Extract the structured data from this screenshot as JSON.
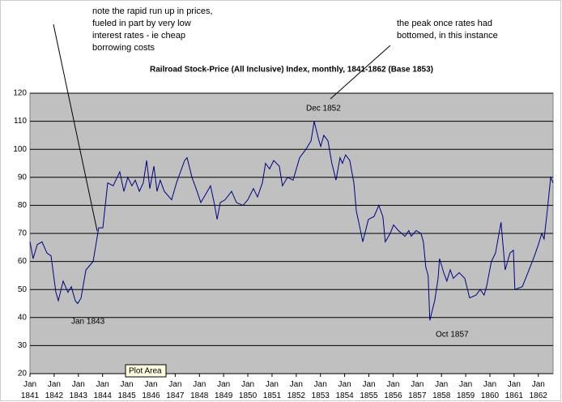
{
  "chart_data": {
    "type": "line",
    "title": "Railroad Stock-Price (All Inclusive) Index, monthly, 1841-1862 (Base 1853)",
    "x": [
      1841.0,
      1841.13,
      1841.3,
      1841.5,
      1841.7,
      1841.87,
      1842.07,
      1842.17,
      1842.37,
      1842.57,
      1842.71,
      1842.87,
      1842.97,
      1843.11,
      1843.31,
      1843.61,
      1843.84,
      1844.01,
      1844.21,
      1844.44,
      1844.71,
      1844.88,
      1845.04,
      1845.21,
      1845.35,
      1845.52,
      1845.68,
      1845.82,
      1845.95,
      1846.12,
      1846.25,
      1846.38,
      1846.55,
      1846.85,
      1847.05,
      1847.39,
      1847.49,
      1847.69,
      1847.86,
      1848.06,
      1848.26,
      1848.46,
      1848.63,
      1848.73,
      1848.86,
      1849.06,
      1849.33,
      1849.53,
      1849.8,
      1850.0,
      1850.23,
      1850.4,
      1850.6,
      1850.73,
      1850.9,
      1851.07,
      1851.3,
      1851.43,
      1851.64,
      1851.87,
      1852.14,
      1852.4,
      1852.61,
      1852.74,
      1852.91,
      1853.01,
      1853.14,
      1853.31,
      1853.47,
      1853.64,
      1853.81,
      1853.91,
      1854.04,
      1854.21,
      1854.38,
      1854.48,
      1854.58,
      1854.75,
      1854.98,
      1855.21,
      1855.41,
      1855.58,
      1855.68,
      1855.88,
      1856.02,
      1856.22,
      1856.49,
      1856.65,
      1856.75,
      1856.95,
      1857.15,
      1857.25,
      1857.35,
      1857.45,
      1857.52,
      1857.72,
      1857.86,
      1857.92,
      1858.09,
      1858.22,
      1858.36,
      1858.49,
      1858.73,
      1858.96,
      1859.16,
      1859.43,
      1859.6,
      1859.76,
      1859.86,
      1860.06,
      1860.23,
      1860.46,
      1860.63,
      1860.83,
      1860.97,
      1861.03,
      1861.34,
      1861.57,
      1861.84,
      1862.0,
      1862.14,
      1862.24,
      1862.37,
      1862.51,
      1862.61
    ],
    "series": [
      {
        "color": "#000080",
        "values": [
          67,
          61,
          66,
          67,
          63,
          62,
          49,
          46,
          53,
          49,
          51,
          46,
          45,
          47,
          57,
          60,
          72,
          72,
          88,
          87,
          92,
          85,
          90,
          87,
          89,
          85,
          88,
          96,
          86,
          94,
          85,
          89,
          85,
          82,
          88,
          96,
          97,
          90,
          86,
          81,
          84,
          87,
          80,
          75,
          81,
          82,
          85,
          81,
          80,
          82,
          86,
          83,
          88,
          95,
          93,
          96,
          94,
          87,
          90,
          89,
          97,
          100,
          103,
          110,
          104,
          101,
          105,
          103,
          95,
          89,
          97,
          95,
          98,
          96,
          88,
          78,
          74,
          67,
          75,
          76,
          80,
          76,
          67,
          70,
          73,
          71,
          69,
          71,
          69,
          71,
          70,
          67,
          58,
          55,
          39,
          46,
          54,
          61,
          56,
          53,
          57,
          54,
          56,
          54,
          47,
          48,
          50,
          48,
          51,
          60,
          63,
          74,
          57,
          63,
          64,
          50,
          51,
          56,
          62,
          66,
          70,
          68,
          78,
          90,
          88
        ]
      }
    ],
    "xlim": [
      1841,
      1862.61
    ],
    "xticks": [
      {
        "value": 1841,
        "label": "Jan 1841"
      },
      {
        "value": 1842,
        "label": "Jan 1842"
      },
      {
        "value": 1843,
        "label": "Jan 1843"
      },
      {
        "value": 1844,
        "label": "Jan 1844"
      },
      {
        "value": 1845,
        "label": "Jan 1845"
      },
      {
        "value": 1846,
        "label": "Jan 1846"
      },
      {
        "value": 1847,
        "label": "Jan 1847"
      },
      {
        "value": 1848,
        "label": "Jan 1848"
      },
      {
        "value": 1849,
        "label": "Jan 1849"
      },
      {
        "value": 1850,
        "label": "Jan 1850"
      },
      {
        "value": 1851,
        "label": "Jan 1851"
      },
      {
        "value": 1852,
        "label": "Jan 1852"
      },
      {
        "value": 1853,
        "label": "Jan 1853"
      },
      {
        "value": 1854,
        "label": "Jan 1854"
      },
      {
        "value": 1855,
        "label": "Jan 1855"
      },
      {
        "value": 1856,
        "label": "Jan 1856"
      },
      {
        "value": 1857,
        "label": "Jan 1857"
      },
      {
        "value": 1858,
        "label": "Jan 1858"
      },
      {
        "value": 1859,
        "label": "Jan 1859"
      },
      {
        "value": 1860,
        "label": "Jan 1860"
      },
      {
        "value": 1861,
        "label": "Jan 1861"
      },
      {
        "value": 1862,
        "label": "Jan 1862"
      }
    ],
    "ylim": [
      20,
      120
    ],
    "yticks": [
      20,
      30,
      40,
      50,
      60,
      70,
      80,
      90,
      100,
      110,
      120
    ],
    "grid": true,
    "annotations": [
      {
        "lines": [
          "note the rapid run up in prices,",
          "fueled in part by very low",
          "interest rates - ie cheap",
          "borrowing costs"
        ]
      },
      {
        "lines": [
          "the peak once rates had",
          "bottomed, in this instance"
        ]
      }
    ],
    "point_labels": [
      "Dec 1852",
      "Jan 1843",
      "Oct 1857"
    ],
    "tooltip": "Plot Area"
  }
}
